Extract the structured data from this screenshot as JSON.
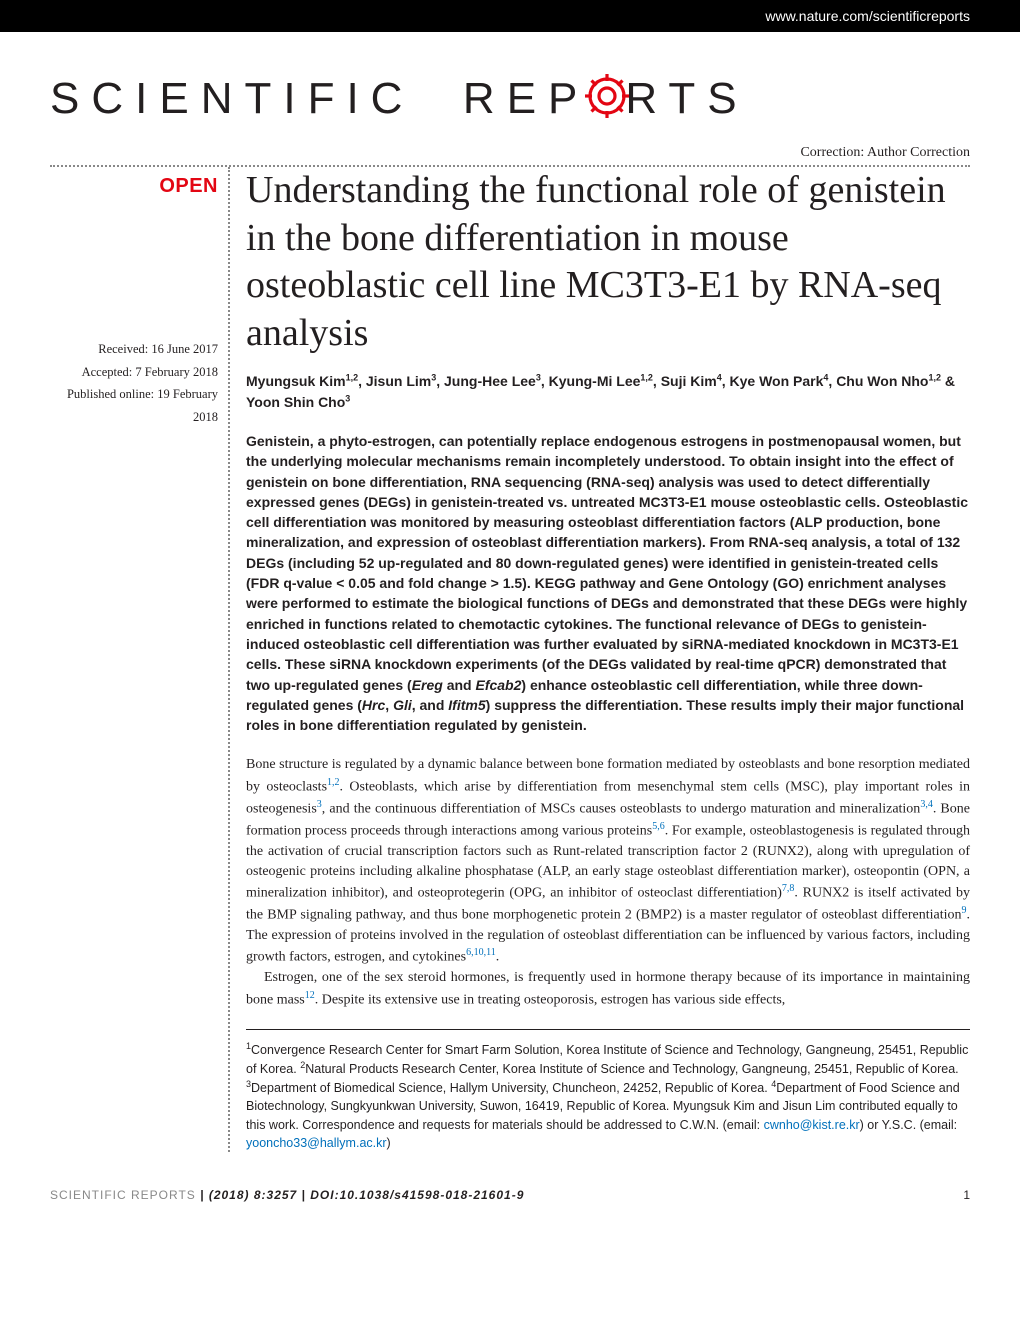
{
  "header": {
    "url": "www.nature.com/scientificreports"
  },
  "logo": {
    "text_before": "SCIENTIFIC",
    "text_rep": "REP",
    "text_rts": "RTS",
    "gear_color": "#e30613"
  },
  "correction_link": "Correction: Author Correction",
  "open_badge": "OPEN",
  "dates": {
    "received": "Received: 16 June 2017",
    "accepted": "Accepted: 7 February 2018",
    "published": "Published online: 19 February 2018"
  },
  "title": "Understanding the functional role of genistein in the bone differentiation in mouse osteoblastic cell line MC3T3-E1 by RNA-seq analysis",
  "authors_html": "Myungsuk Kim<sup>1,2</sup>, Jisun Lim<sup>3</sup>, Jung-Hee Lee<sup>3</sup>, Kyung-Mi Lee<sup>1,2</sup>, Suji Kim<sup>4</sup>, Kye Won Park<sup>4</sup>, Chu Won Nho<sup>1,2</sup> & Yoon Shin Cho<sup>3</sup>",
  "abstract": "Genistein, a phyto-estrogen, can potentially replace endogenous estrogens in postmenopausal women, but the underlying molecular mechanisms remain incompletely understood. To obtain insight into the effect of genistein on bone differentiation, RNA sequencing (RNA-seq) analysis was used to detect differentially expressed genes (DEGs) in genistein-treated vs. untreated MC3T3-E1 mouse osteoblastic cells. Osteoblastic cell differentiation was monitored by measuring osteoblast differentiation factors (ALP production, bone mineralization, and expression of osteoblast differentiation markers). From RNA-seq analysis, a total of 132 DEGs (including 52 up-regulated and 80 down-regulated genes) were identified in genistein-treated cells (FDR q-value < 0.05 and fold change > 1.5). KEGG pathway and Gene Ontology (GO) enrichment analyses were performed to estimate the biological functions of DEGs and demonstrated that these DEGs were highly enriched in functions related to chemotactic cytokines. The functional relevance of DEGs to genistein-induced osteoblastic cell differentiation was further evaluated by siRNA-mediated knockdown in MC3T3-E1 cells. These siRNA knockdown experiments (of the DEGs validated by real-time qPCR) demonstrated that two up-regulated genes (Ereg and Efcab2) enhance osteoblastic cell differentiation, while three down-regulated genes (Hrc, Gli, and Ifitm5) suppress the differentiation. These results imply their major functional roles in bone differentiation regulated by genistein.",
  "body": {
    "p1": "Bone structure is regulated by a dynamic balance between bone formation mediated by osteoblasts and bone resorption mediated by osteoclasts",
    "p1_refs1": "1,2",
    "p1_cont": ". Osteoblasts, which arise by differentiation from mesenchymal stem cells (MSC), play important roles in osteogenesis",
    "p1_refs2": "3",
    "p1_cont2": ", and the continuous differentiation of MSCs causes osteoblasts to undergo maturation and mineralization",
    "p1_refs3": "3,4",
    "p1_cont3": ". Bone formation process proceeds through interactions among various proteins",
    "p1_refs4": "5,6",
    "p1_cont4": ". For example, osteoblastogenesis is regulated through the activation of crucial transcription factors such as Runt-related transcription factor 2 (RUNX2), along with upregulation of osteogenic proteins including alkaline phosphatase (ALP, an early stage osteoblast differentiation marker), osteopontin (OPN, a mineralization inhibitor), and osteoprotegerin (OPG, an inhibitor of osteoclast differentiation)",
    "p1_refs5": "7,8",
    "p1_cont5": ". RUNX2 is itself activated by the BMP signaling pathway, and thus bone morphogenetic protein 2 (BMP2) is a master regulator of osteoblast differentiation",
    "p1_refs6": "9",
    "p1_cont6": ". The expression of proteins involved in the regulation of osteoblast differentiation can be influenced by various factors, including growth factors, estrogen, and cytokines",
    "p1_refs7": "6,10,11",
    "p1_cont7": ".",
    "p2": "Estrogen, one of the sex steroid hormones, is frequently used in hormone therapy because of its importance in maintaining bone mass",
    "p2_refs1": "12",
    "p2_cont": ". Despite its extensive use in treating osteoporosis, estrogen has various side effects,"
  },
  "affiliations": {
    "text_before": "Convergence Research Center for Smart Farm Solution, Korea Institute of Science and Technology, Gangneung, 25451, Republic of Korea. ",
    "aff2": "Natural Products Research Center, Korea Institute of Science and Technology, Gangneung, 25451, Republic of Korea. ",
    "aff3": "Department of Biomedical Science, Hallym University, Chuncheon, 24252, Republic of Korea. ",
    "aff4": "Department of Food Science and Biotechnology, Sungkyunkwan University, Suwon, 16419, Republic of Korea. ",
    "contrib": "Myungsuk Kim and Jisun Lim contributed equally to this work. Correspondence and requests for materials should be addressed to C.W.N. (email: ",
    "email1": "cwnho@kist.re.kr",
    "middle": ") or Y.S.C. (email: ",
    "email2": "yooncho33@hallym.ac.kr",
    "end": ")"
  },
  "footer": {
    "journal": "SCIENTIFIC REPORTS",
    "citation": " | (2018) 8:3257 | DOI:10.1038/s41598-018-21601-9",
    "page": "1"
  },
  "colors": {
    "accent_red": "#e30613",
    "link_blue": "#0070bb",
    "text": "#231f20",
    "header_bg": "#000000"
  }
}
